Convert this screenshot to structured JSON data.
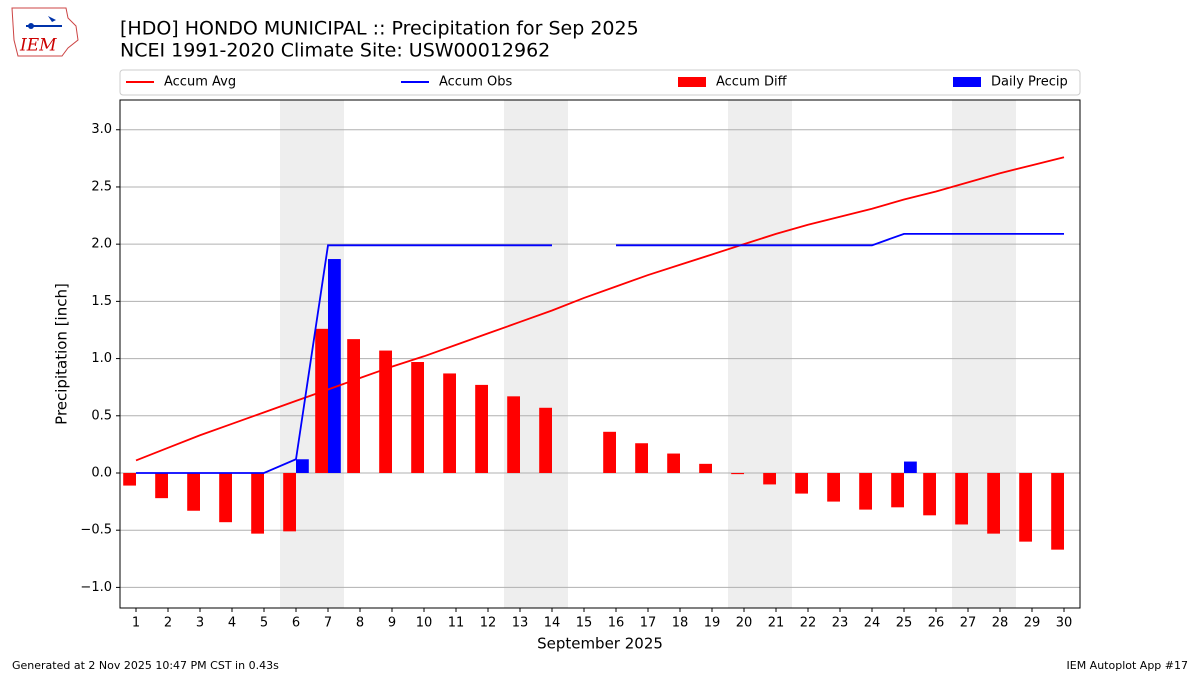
{
  "logo_text": "IEM",
  "chart_data": {
    "type": "combo",
    "title": "[HDO] HONDO MUNICIPAL :: Precipitation for Sep 2025",
    "subtitle": "NCEI 1991-2020 Climate Site: USW00012962",
    "xlabel": "September 2025",
    "ylabel": "Precipitation [inch]",
    "x": [
      1,
      2,
      3,
      4,
      5,
      6,
      7,
      8,
      9,
      10,
      11,
      12,
      13,
      14,
      15,
      16,
      17,
      18,
      19,
      20,
      21,
      22,
      23,
      24,
      25,
      26,
      27,
      28,
      29,
      30
    ],
    "xlim": [
      0.5,
      30.5
    ],
    "xticks": [
      1,
      2,
      3,
      4,
      5,
      6,
      7,
      8,
      9,
      10,
      11,
      12,
      13,
      14,
      15,
      16,
      17,
      18,
      19,
      20,
      21,
      22,
      23,
      24,
      25,
      26,
      27,
      28,
      29,
      30
    ],
    "ylim": [
      -1.18,
      3.26
    ],
    "yticks": [
      {
        "value": -1,
        "label": "−1.0"
      },
      {
        "value": -0.5,
        "label": "−0.5"
      },
      {
        "value": 0,
        "label": "0.0"
      },
      0.5,
      {
        "value": 1,
        "label": "1.0"
      },
      1.5,
      {
        "value": 2,
        "label": "2.0"
      },
      2.5,
      {
        "value": 3,
        "label": "3.0"
      }
    ],
    "grid": true,
    "weekend_shading": [
      [
        5.5,
        7.5
      ],
      [
        12.5,
        14.5
      ],
      [
        19.5,
        21.5
      ],
      [
        26.5,
        28.5
      ]
    ],
    "series": [
      {
        "name": "Accum Avg",
        "type": "line",
        "color": "#ff0000",
        "values": [
          0.11,
          0.22,
          0.33,
          0.43,
          0.53,
          0.63,
          0.73,
          0.83,
          0.93,
          1.02,
          1.12,
          1.22,
          1.32,
          1.42,
          1.53,
          1.63,
          1.73,
          1.82,
          1.91,
          2.0,
          2.09,
          2.17,
          2.24,
          2.31,
          2.39,
          2.46,
          2.54,
          2.62,
          2.69,
          2.76
        ]
      },
      {
        "name": "Accum Obs",
        "type": "line",
        "color": "#0000ff",
        "values": [
          0,
          0,
          0,
          0,
          0,
          0.12,
          1.99,
          1.99,
          1.99,
          1.99,
          1.99,
          1.99,
          1.99,
          1.99,
          null,
          1.99,
          1.99,
          1.99,
          1.99,
          1.99,
          1.99,
          1.99,
          1.99,
          1.99,
          2.09,
          2.09,
          2.09,
          2.09,
          2.09,
          2.09
        ]
      },
      {
        "name": "Accum Diff",
        "type": "bar",
        "color": "#ff0000",
        "values": [
          -0.11,
          -0.22,
          -0.33,
          -0.43,
          -0.53,
          -0.51,
          1.26,
          1.17,
          1.07,
          0.97,
          0.87,
          0.77,
          0.67,
          0.57,
          null,
          0.36,
          0.26,
          0.17,
          0.08,
          -0.01,
          -0.1,
          -0.18,
          -0.25,
          -0.32,
          -0.3,
          -0.37,
          -0.45,
          -0.53,
          -0.6,
          -0.67
        ]
      },
      {
        "name": "Daily Precip",
        "type": "bar",
        "color": "#0000ff",
        "values": [
          0,
          0,
          0,
          0,
          0,
          0.12,
          1.87,
          0,
          0,
          0,
          0,
          0,
          0,
          0,
          null,
          0,
          0,
          0,
          0,
          0,
          0,
          0,
          0,
          0,
          0.1,
          0,
          0,
          0,
          0,
          0
        ]
      }
    ],
    "footer_left": "Generated at 2 Nov 2025 10:47 PM CST in 0.43s",
    "footer_right": "IEM Autoplot App #17"
  }
}
